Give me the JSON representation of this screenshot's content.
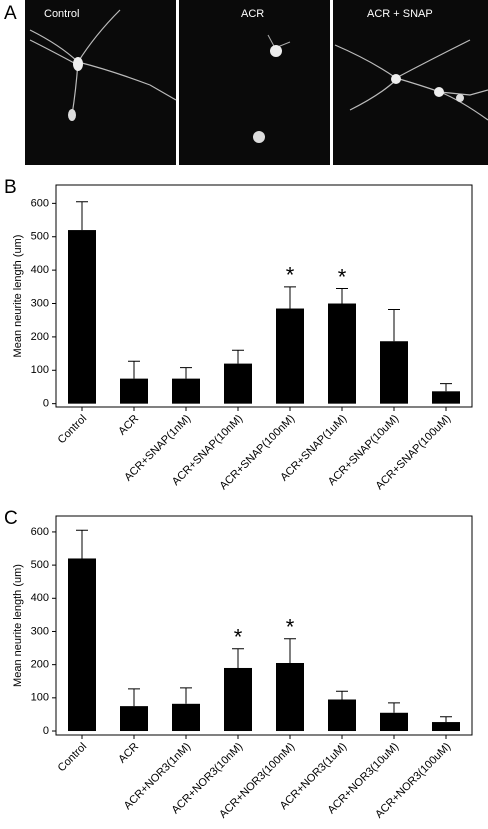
{
  "figure": {
    "panel_a": {
      "label": "A",
      "images": [
        "Control",
        "ACR",
        "ACR + SNAP"
      ]
    }
  },
  "chart_data": [
    {
      "type": "bar",
      "panel_label": "B",
      "y_label": "Mean neurite length (um)",
      "color": "#000000",
      "categories": [
        "Control",
        "ACR",
        "ACR+SNAP(1nM)",
        "ACR+SNAP(10nM)",
        "ACR+SNAP(100nM)",
        "ACR+SNAP(1uM)",
        "ACR+SNAP(10uM)",
        "ACR+SNAP(100uM)"
      ],
      "values": [
        520,
        75,
        75,
        120,
        285,
        300,
        187,
        37
      ],
      "errors": [
        85,
        52,
        33,
        40,
        65,
        45,
        95,
        23
      ],
      "annotations": [
        {
          "text": "*",
          "category": "ACR+SNAP(100nM)"
        },
        {
          "text": "*",
          "category": "ACR+SNAP(1uM)"
        }
      ],
      "ylim": [
        -10,
        655
      ],
      "yticks": [
        0,
        100,
        200,
        300,
        400,
        500,
        600
      ]
    },
    {
      "type": "bar",
      "panel_label": "C",
      "y_label": "Mean neurite length (um)",
      "color": "#000000",
      "categories": [
        "Control",
        "ACR",
        "ACR+NOR3(1nM)",
        "ACR+NOR3(10nM)",
        "ACR+NOR3(100nM)",
        "ACR+NOR3(1uM)",
        "ACR+NOR3(10uM)",
        "ACR+NOR3(100uM)"
      ],
      "values": [
        520,
        75,
        82,
        190,
        205,
        95,
        55,
        27
      ],
      "errors": [
        85,
        52,
        48,
        58,
        73,
        25,
        30,
        16
      ],
      "annotations": [
        {
          "text": "*",
          "category": "ACR+NOR3(10nM)"
        },
        {
          "text": "*",
          "category": "ACR+NOR3(100nM)"
        }
      ],
      "ylim": [
        -12,
        648
      ],
      "yticks": [
        0,
        100,
        200,
        300,
        400,
        500,
        600
      ]
    }
  ]
}
